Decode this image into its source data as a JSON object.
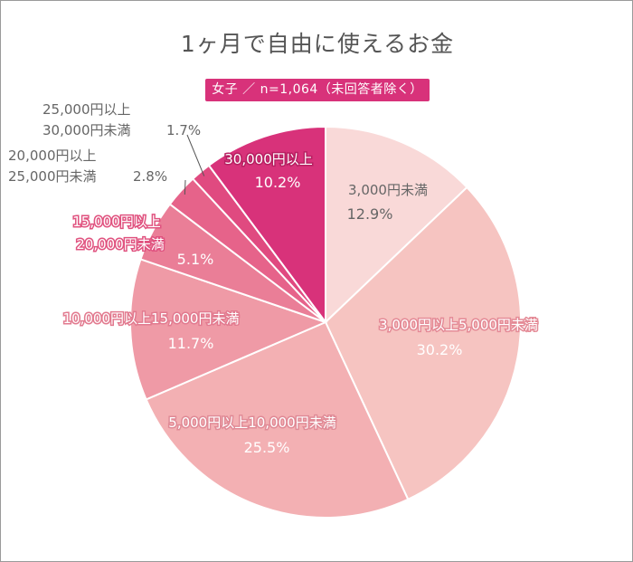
{
  "chart_data": {
    "type": "pie",
    "title": "1ヶ月で自由に使えるお金",
    "subtitle": "女子 ／ n=1,064（未回答者除く）",
    "start_angle_deg": 0,
    "direction": "clockwise",
    "slices": [
      {
        "label": "3,000円未満",
        "percent_text": "12.9%",
        "value": 12.9,
        "color": "#f9d9d8"
      },
      {
        "label": "3,000円以上5,000円未満",
        "percent_text": "30.2%",
        "value": 30.2,
        "color": "#f6c4c1"
      },
      {
        "label": "5,000円以上10,000円未満",
        "percent_text": "25.5%",
        "value": 25.5,
        "color": "#f3b0b3"
      },
      {
        "label": "10,000円以上15,000円未満",
        "percent_text": "11.7%",
        "value": 11.7,
        "color": "#ef9aa6"
      },
      {
        "label_line1": "15,000円以上",
        "label_line2": "20,000円未満",
        "percent_text": "5.1%",
        "value": 5.1,
        "color": "#ea7e97"
      },
      {
        "label_line1": "20,000円以上",
        "label_line2": "25,000円未満",
        "percent_text": "2.8%",
        "value": 2.8,
        "color": "#e6638a"
      },
      {
        "label_line1": "25,000円以上",
        "label_line2": "30,000円未満",
        "percent_text": "1.7%",
        "value": 1.7,
        "color": "#e04a80"
      },
      {
        "label": "30,000円以上",
        "percent_text": "10.2%",
        "value": 10.2,
        "color": "#d8327a"
      }
    ]
  }
}
